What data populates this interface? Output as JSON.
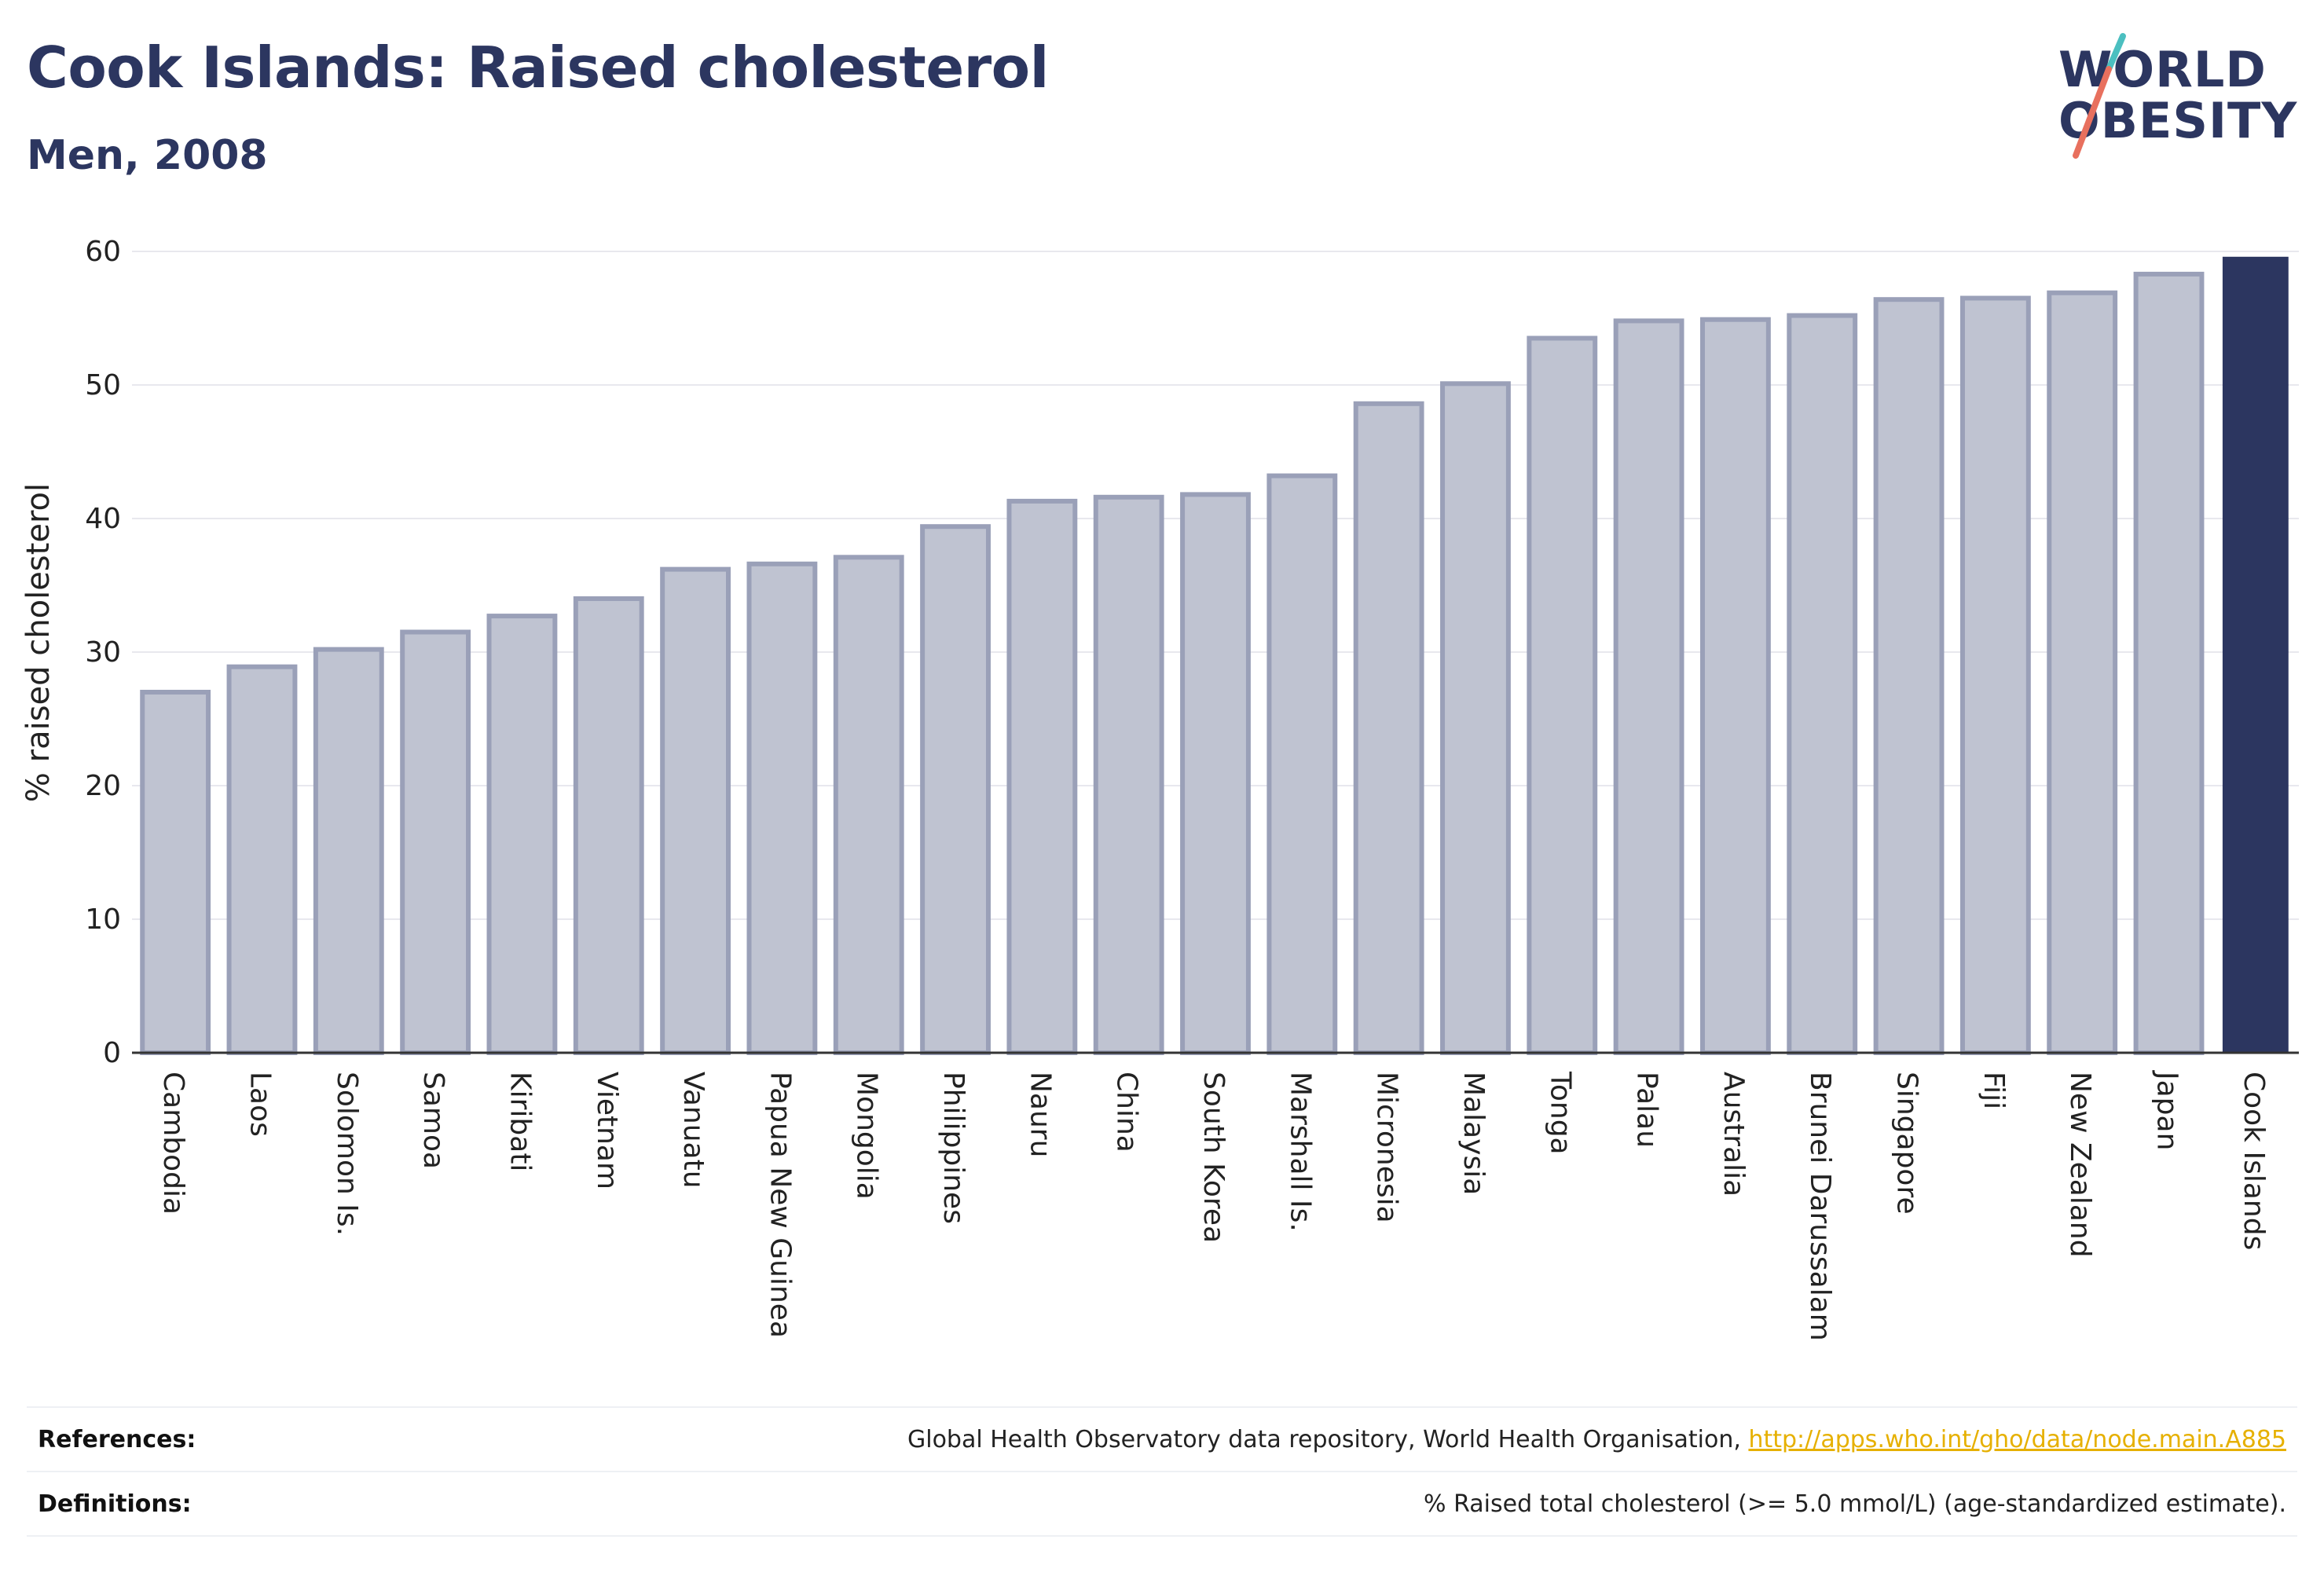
{
  "header": {
    "title": "Cook Islands: Raised cholesterol",
    "subtitle": "Men, 2008"
  },
  "logo": {
    "line1": "WORLD",
    "line2": "OBESITY",
    "accent_colors": [
      "#4bbfc0",
      "#e8705e"
    ]
  },
  "colors": {
    "bar_default_fill": "#bfc3d1",
    "bar_default_stroke": "#9aa0b8",
    "bar_highlight": "#2c3660",
    "gridline": "#e8e8ee",
    "axis": "#333333",
    "link": "#e6b000"
  },
  "chart_data": {
    "type": "bar",
    "title": "Cook Islands: Raised cholesterol",
    "subtitle": "Men, 2008",
    "xlabel": "",
    "ylabel": "% raised cholesterol",
    "ylim": [
      0,
      60
    ],
    "yticks": [
      0,
      10,
      20,
      30,
      40,
      50,
      60
    ],
    "grid": true,
    "highlight": "Cook Islands",
    "categories": [
      "Cambodia",
      "Laos",
      "Solomon Is.",
      "Samoa",
      "Kiribati",
      "Vietnam",
      "Vanuatu",
      "Papua New Guinea",
      "Mongolia",
      "Philippines",
      "Nauru",
      "China",
      "South Korea",
      "Marshall Is.",
      "Micronesia",
      "Malaysia",
      "Tonga",
      "Palau",
      "Australia",
      "Brunei Darussalam",
      "Singapore",
      "Fiji",
      "New Zealand",
      "Japan",
      "Cook Islands"
    ],
    "values": [
      27.0,
      28.9,
      30.2,
      31.5,
      32.7,
      34.0,
      36.2,
      36.6,
      37.1,
      39.4,
      41.3,
      41.6,
      41.8,
      43.2,
      48.6,
      50.1,
      53.5,
      54.8,
      54.9,
      55.2,
      56.4,
      56.5,
      56.9,
      58.3,
      59.6
    ]
  },
  "footer": {
    "references_label": "References:",
    "references_text": "Global Health Observatory data repository, World Health Organisation,",
    "references_link": "http://apps.who.int/gho/data/node.main.A885",
    "definitions_label": "Definitions:",
    "definitions_text": "% Raised total cholesterol (>= 5.0 mmol/L) (age-standardized estimate)."
  }
}
